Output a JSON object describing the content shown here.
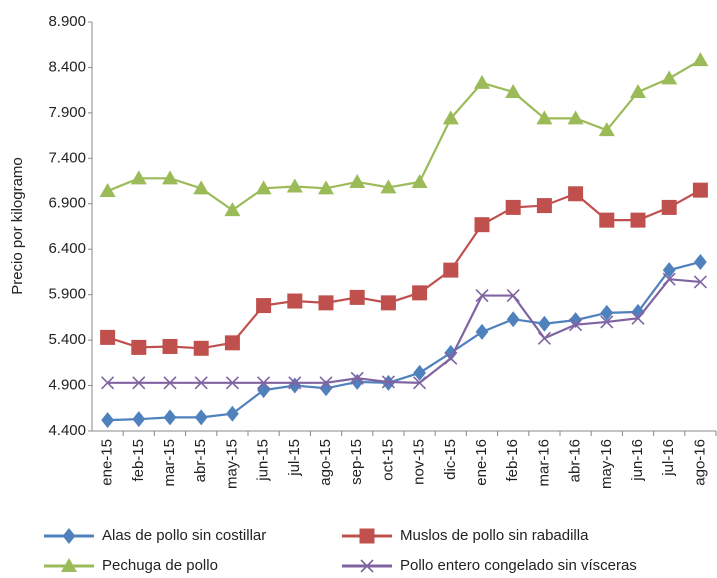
{
  "chart_data": {
    "type": "line",
    "y_label": "Precio por kilogramo",
    "categories": [
      "ene-15",
      "feb-15",
      "mar-15",
      "abr-15",
      "may-15",
      "jun-15",
      "jul-15",
      "ago-15",
      "sep-15",
      "oct-15",
      "nov-15",
      "dic-15",
      "ene-16",
      "feb-16",
      "mar-16",
      "abr-16",
      "may-16",
      "jun-16",
      "jul-16",
      "ago-16"
    ],
    "series": [
      {
        "name": "Alas de pollo sin costillar",
        "color": "#4f81bd",
        "marker": "diamond",
        "values": [
          4520,
          4530,
          4550,
          4550,
          4590,
          4850,
          4900,
          4870,
          4940,
          4930,
          5040,
          5260,
          5490,
          5630,
          5580,
          5620,
          5700,
          5710,
          6170,
          6260
        ]
      },
      {
        "name": "Muslos de pollo sin rabadilla",
        "color": "#c0504d",
        "marker": "square",
        "values": [
          5430,
          5320,
          5330,
          5310,
          5370,
          5780,
          5830,
          5810,
          5870,
          5810,
          5920,
          6170,
          6670,
          6860,
          6880,
          7010,
          6720,
          6720,
          6860,
          7050
        ]
      },
      {
        "name": "Pechuga de pollo",
        "color": "#9bbb59",
        "marker": "triangle",
        "values": [
          7040,
          7180,
          7180,
          7070,
          6830,
          7070,
          7090,
          7070,
          7140,
          7080,
          7140,
          7840,
          8230,
          8130,
          7840,
          7840,
          7710,
          8130,
          8280,
          8480
        ]
      },
      {
        "name": "Pollo entero congelado sin vísceras",
        "color": "#8064a2",
        "marker": "x",
        "values": [
          4930,
          4930,
          4930,
          4930,
          4930,
          4930,
          4930,
          4930,
          4980,
          4940,
          4930,
          5200,
          5890,
          5890,
          5420,
          5570,
          5600,
          5640,
          6070,
          6040
        ]
      }
    ],
    "ylim": [
      4400,
      8900
    ],
    "yticks": [
      {
        "value": 4400,
        "label": "4.400"
      },
      {
        "value": 4900,
        "label": "4.900"
      },
      {
        "value": 5400,
        "label": "5.400"
      },
      {
        "value": 5900,
        "label": "5.900"
      },
      {
        "value": 6400,
        "label": "6.400"
      },
      {
        "value": 6900,
        "label": "6.900"
      },
      {
        "value": 7400,
        "label": "7.400"
      },
      {
        "value": 7900,
        "label": "7.900"
      },
      {
        "value": 8400,
        "label": "8.400"
      },
      {
        "value": 8900,
        "label": "8.900"
      }
    ],
    "grid": false
  }
}
